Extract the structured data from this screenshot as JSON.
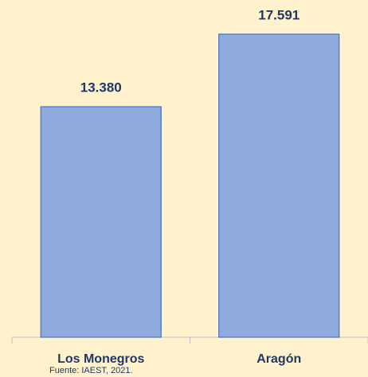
{
  "chart_data": {
    "type": "bar",
    "categories": [
      "Los Monegros",
      "Aragón"
    ],
    "values": [
      13380,
      17591
    ],
    "value_labels": [
      "13.380",
      "17.591"
    ],
    "color": "#8faadc",
    "note": "Fuente: IAEST, 2021."
  }
}
